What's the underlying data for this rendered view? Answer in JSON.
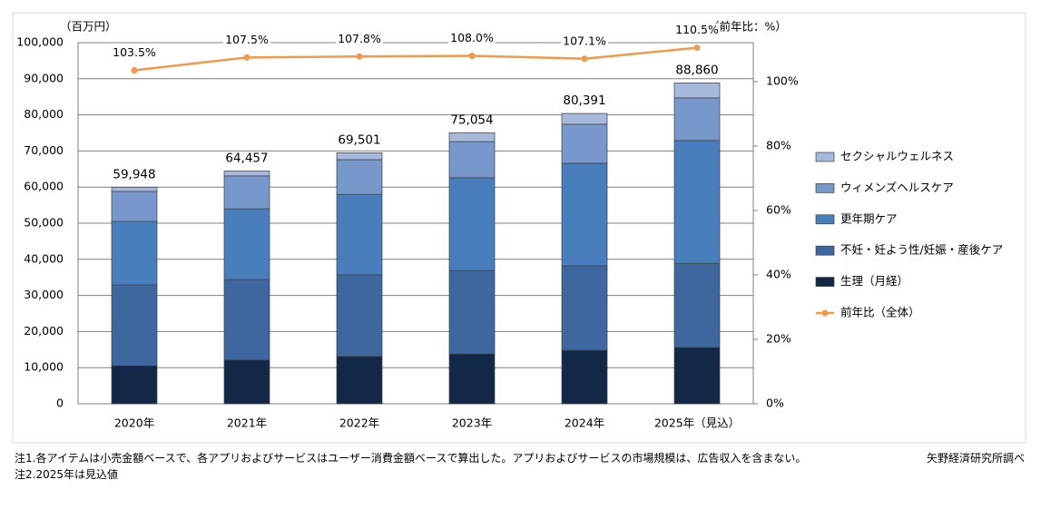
{
  "chart_data": {
    "type": "stacked-bar-line",
    "y_unit_label": "（百万円）",
    "y2_unit_label": "（前年比：%）",
    "categories": [
      "2020年",
      "2021年",
      "2022年",
      "2023年",
      "2024年",
      "2025年（見込）"
    ],
    "series": [
      {
        "name": "生理（月経）",
        "color": "#132847",
        "values": [
          10500,
          12100,
          13100,
          13800,
          14800,
          15600
        ]
      },
      {
        "name": "不妊・妊よう性/妊娠・産後ケア",
        "color": "#3e679f",
        "values": [
          22400,
          22300,
          22600,
          23100,
          23400,
          23300
        ]
      },
      {
        "name": "更年期ケア",
        "color": "#4a7dbb",
        "values": [
          17600,
          19600,
          22300,
          25700,
          28400,
          34000
        ]
      },
      {
        "name": "ウィメンズヘルスケア",
        "color": "#7898cb",
        "values": [
          8300,
          9100,
          9600,
          10000,
          10800,
          11800
        ]
      },
      {
        "name": "セクシャルウェルネス",
        "color": "#a6b8dc",
        "values": [
          1148,
          1357,
          1901,
          2454,
          2991,
          4160
        ]
      },
      {
        "name": "前年比（全体）",
        "color": "#f0994a",
        "type": "line",
        "axis": "y2",
        "values": [
          103.5,
          107.5,
          107.8,
          108.0,
          107.1,
          110.5
        ],
        "value_labels": [
          "103.5%",
          "107.5%",
          "107.8%",
          "108.0%",
          "107.1%",
          "110.5%"
        ]
      }
    ],
    "totals": [
      59948,
      64457,
      69501,
      75054,
      80391,
      88860
    ],
    "total_labels": [
      "59,948",
      "64,457",
      "69,501",
      "75,054",
      "80,391",
      "88,860"
    ],
    "ylim": [
      0,
      100000
    ],
    "yticks": [
      0,
      {
        "value": 10000,
        "label": "10,000"
      },
      {
        "value": 20000,
        "label": "20,000"
      },
      {
        "value": 30000,
        "label": "30,000"
      },
      {
        "value": 40000,
        "label": "40,000"
      },
      {
        "value": 50000,
        "label": "50,000"
      },
      {
        "value": 60000,
        "label": "60,000"
      },
      {
        "value": 70000,
        "label": "70,000"
      },
      {
        "value": 80000,
        "label": "80,000"
      },
      {
        "value": 90000,
        "label": "90,000"
      },
      {
        "value": 100000,
        "label": "100,000"
      }
    ],
    "y2lim": [
      0,
      112.1
    ],
    "y2ticks": [
      {
        "value": 0,
        "label": "0%"
      },
      {
        "value": 20,
        "label": "20%"
      },
      {
        "value": 40,
        "label": "40%"
      },
      {
        "value": 60,
        "label": "60%"
      },
      {
        "value": 80,
        "label": "80%"
      },
      {
        "value": 100,
        "label": "100%"
      }
    ],
    "grid": true,
    "legend": "right",
    "notes": [
      "注1.各アイテムは小売金額ベースで、各アプリおよびサービスはユーザー消費金額ベースで算出した。アプリおよびサービスの市場規模は、広告収入を含まない。",
      "注2.2025年は見込値"
    ],
    "source": "矢野経済研究所調べ"
  }
}
